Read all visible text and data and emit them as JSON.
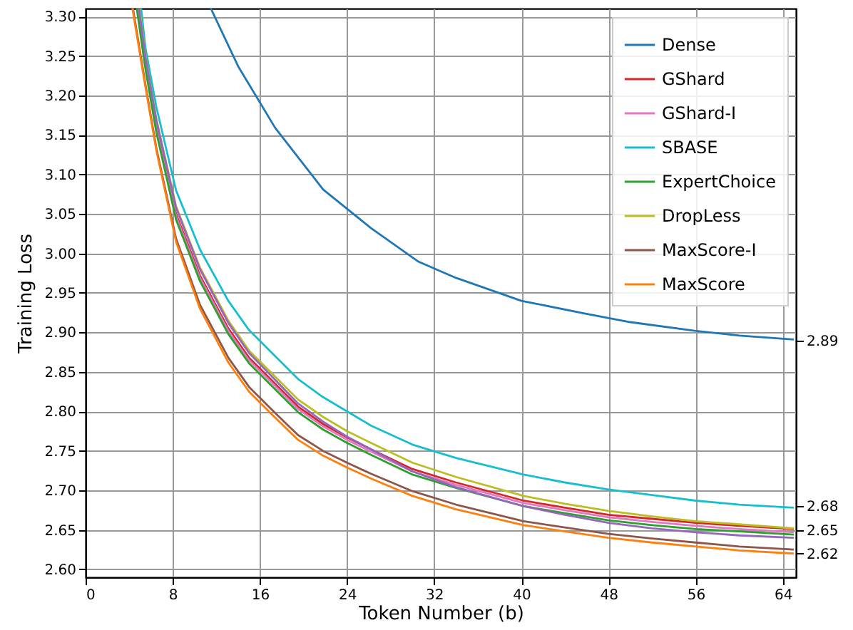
{
  "chart_data": {
    "type": "line",
    "xlabel": "Token Number (b)",
    "ylabel": "Training Loss",
    "xlim": [
      0,
      65.2
    ],
    "ylim": [
      2.59,
      3.31
    ],
    "xticks": [
      0,
      8,
      16,
      24,
      32,
      40,
      48,
      56,
      64
    ],
    "yticks": [
      {
        "value": 2.6,
        "label": "2.60"
      },
      {
        "value": 2.65,
        "label": "2.65"
      },
      {
        "value": 2.7,
        "label": "2.70"
      },
      {
        "value": 2.75,
        "label": "2.75"
      },
      {
        "value": 2.8,
        "label": "2.80"
      },
      {
        "value": 2.85,
        "label": "2.85"
      },
      {
        "value": 2.9,
        "label": "2.90"
      },
      {
        "value": 2.95,
        "label": "2.95"
      },
      {
        "value": 3.0,
        "label": "3.00"
      },
      {
        "value": 3.05,
        "label": "3.05"
      },
      {
        "value": 3.1,
        "label": "3.10"
      },
      {
        "value": 3.15,
        "label": "3.15"
      },
      {
        "value": 3.2,
        "label": "3.20"
      },
      {
        "value": 3.25,
        "label": "3.25"
      },
      {
        "value": 3.3,
        "label": "3.30"
      }
    ],
    "y2lim": [
      2.59,
      3.31
    ],
    "y2ticks": [
      {
        "value": 2.62,
        "label": "2.62"
      },
      {
        "value": 2.65,
        "label": "2.65"
      },
      {
        "value": 2.68,
        "label": "2.68"
      },
      {
        "value": 2.89,
        "label": "2.89"
      }
    ],
    "grid": true,
    "legend": "top right",
    "line_style": "solid",
    "marker": "none",
    "series": [
      {
        "name": "Dense",
        "color": "#1f77b4",
        "x": [
          11.5,
          14,
          17.4,
          21.8,
          26.2,
          30.5,
          34,
          40,
          45.8,
          50,
          55.9,
          60,
          65
        ],
        "values": [
          3.31,
          3.237,
          3.159,
          3.081,
          3.032,
          2.99,
          2.969,
          2.94,
          2.924,
          2.913,
          2.902,
          2.896,
          2.891
        ]
      },
      {
        "name": "GShard",
        "color": "#d62728",
        "x": [
          6.5,
          8.3,
          10.5,
          13.1,
          15,
          17.4,
          19.5,
          21.8,
          24,
          26.2,
          30,
          34,
          40.2,
          44,
          48,
          52,
          56,
          60,
          65
        ],
        "values": [
          3.16,
          3.05,
          2.972,
          2.905,
          2.868,
          2.835,
          2.806,
          2.784,
          2.767,
          2.752,
          2.727,
          2.71,
          2.687,
          2.678,
          2.669,
          2.664,
          2.659,
          2.655,
          2.651
        ]
      },
      {
        "name": "GShard-I",
        "color": "#e377c2",
        "x": [
          4.75,
          5.5,
          6.5,
          8.3,
          10.5,
          13.1,
          15,
          17.4,
          19.5,
          21.8,
          24,
          26.2,
          30,
          34,
          40.2,
          44,
          48,
          52,
          56,
          60,
          65
        ],
        "values": [
          3.31,
          3.237,
          3.157,
          3.047,
          2.969,
          2.902,
          2.865,
          2.832,
          2.803,
          2.781,
          2.764,
          2.749,
          2.724,
          2.707,
          2.684,
          2.675,
          2.666,
          2.66,
          2.655,
          2.651,
          2.647
        ]
      },
      {
        "name": "SBASE",
        "color": "#17becf",
        "x": [
          5.1,
          5.5,
          6.5,
          8.3,
          10.5,
          13.1,
          15,
          17.4,
          19.5,
          21.8,
          24,
          26.2,
          30,
          34,
          40.2,
          44,
          48,
          52,
          56,
          60,
          65
        ],
        "values": [
          3.31,
          3.26,
          3.185,
          3.08,
          3.005,
          2.94,
          2.903,
          2.87,
          2.841,
          2.818,
          2.8,
          2.782,
          2.758,
          2.741,
          2.72,
          2.71,
          2.701,
          2.694,
          2.687,
          2.682,
          2.678
        ]
      },
      {
        "name": "ExpertChoice",
        "color": "#2ca02c",
        "x": [
          4.7,
          5.5,
          6.5,
          8.3,
          10.5,
          13.1,
          15,
          17.4,
          19.5,
          21.8,
          24,
          26.2,
          30,
          34,
          40.2,
          44,
          48,
          52,
          56,
          60,
          65
        ],
        "values": [
          3.31,
          3.233,
          3.153,
          3.043,
          2.965,
          2.898,
          2.861,
          2.828,
          2.799,
          2.777,
          2.76,
          2.745,
          2.72,
          2.703,
          2.68,
          2.671,
          2.662,
          2.656,
          2.651,
          2.648,
          2.644
        ]
      },
      {
        "name": "DropLess",
        "color": "#bcbd22",
        "x": [
          4.95,
          5.5,
          6.5,
          8.3,
          10.5,
          13.1,
          15,
          17.4,
          19.5,
          21.8,
          24,
          26.2,
          30,
          34,
          40.2,
          44,
          48,
          52,
          56,
          60,
          65
        ],
        "values": [
          3.31,
          3.25,
          3.17,
          3.06,
          2.982,
          2.915,
          2.877,
          2.844,
          2.815,
          2.793,
          2.775,
          2.76,
          2.735,
          2.717,
          2.693,
          2.683,
          2.674,
          2.667,
          2.661,
          2.657,
          2.652
        ]
      },
      {
        "color": "#9467bd",
        "x": [
          4.9,
          5.5,
          6.5,
          8.3,
          10.5,
          13.1,
          15,
          17.4,
          19.5,
          21.8,
          24,
          26.2,
          30,
          34,
          40.2,
          44,
          48,
          52,
          56,
          60,
          65
        ],
        "values": [
          3.31,
          3.248,
          3.168,
          3.058,
          2.98,
          2.912,
          2.874,
          2.84,
          2.81,
          2.787,
          2.768,
          2.752,
          2.724,
          2.704,
          2.68,
          2.669,
          2.659,
          2.652,
          2.647,
          2.643,
          2.64
        ]
      },
      {
        "name": "MaxScore-I",
        "color": "#8c564b",
        "x": [
          4.35,
          5.5,
          6.5,
          8.3,
          10.5,
          13.1,
          15,
          17.4,
          19.5,
          21.8,
          24,
          26.2,
          30,
          34,
          40.2,
          44,
          48,
          52,
          56,
          60,
          65
        ],
        "values": [
          3.31,
          3.213,
          3.133,
          3.019,
          2.935,
          2.868,
          2.831,
          2.798,
          2.77,
          2.75,
          2.735,
          2.721,
          2.699,
          2.682,
          2.661,
          2.653,
          2.645,
          2.639,
          2.634,
          2.629,
          2.625
        ]
      },
      {
        "name": "MaxScore",
        "color": "#ff7f0e",
        "x": [
          4.3,
          5.5,
          6.5,
          8.3,
          10.5,
          13.1,
          15,
          17.4,
          19.5,
          21.8,
          24,
          26.2,
          30,
          34,
          40.2,
          44,
          48,
          52,
          56,
          60,
          65
        ],
        "values": [
          3.31,
          3.21,
          3.13,
          3.015,
          2.93,
          2.862,
          2.825,
          2.792,
          2.764,
          2.744,
          2.729,
          2.715,
          2.693,
          2.676,
          2.656,
          2.648,
          2.64,
          2.634,
          2.629,
          2.624,
          2.62
        ]
      }
    ]
  }
}
